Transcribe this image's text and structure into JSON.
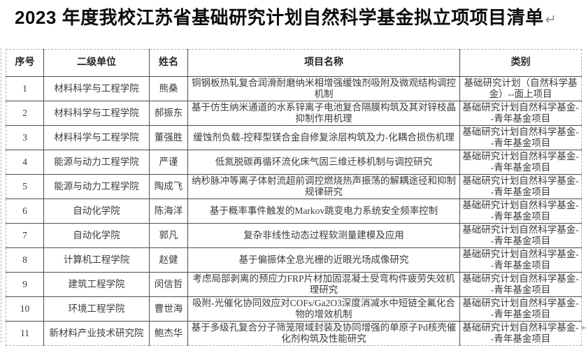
{
  "title": {
    "text": "2023 年度我校江苏省基础研究计划自然科学基金拟立项项目清单",
    "pilcrow": "↵"
  },
  "table": {
    "headers": [
      "序号",
      "二级单位",
      "姓名",
      "项目名称",
      "类别"
    ],
    "rows": [
      {
        "no": "1",
        "unit": "材料科学与工程学院",
        "name": "熊桑",
        "project": "铜钢板热轧复合润滑耐磨纳米相增强缓蚀剂吸附及微观结构调控机制",
        "category": "基础研究计划（自然科学基金）--面上项目"
      },
      {
        "no": "2",
        "unit": "材料科学与工程学院",
        "name": "郝振东",
        "project": "基于仿生纳米通道的水系锌离子电池复合隔膜构筑及其对锌枝晶抑制作用机理",
        "category": "基础研究计划自然科学基金--青年基金项目"
      },
      {
        "no": "3",
        "unit": "材料科学与工程学院",
        "name": "董强胜",
        "project": "缓蚀剂负载-控释型镁合金自修复涂层构筑及力-化耦合损伤机理",
        "category": "基础研究计划自然科学基金--青年基金项目"
      },
      {
        "no": "4",
        "unit": "能源与动力工程学院",
        "name": "严谨",
        "project": "低氮脱碳再循环流化床气固三维迁移机制与调控研究",
        "category": "基础研究计划自然科学基金--青年基金项目"
      },
      {
        "no": "5",
        "unit": "能源与动力工程学院",
        "name": "陶成飞",
        "project": "纳秒脉冲等离子体射流超前调控燃烧热声振荡的解耦途径和抑制规律研究",
        "category": "基础研究计划自然科学基金--青年基金项目"
      },
      {
        "no": "6",
        "unit": "自动化学院",
        "name": "陈海洋",
        "project": "基于概率事件触发的Markov跳变电力系统安全频率控制",
        "category": "基础研究计划自然科学基金--青年基金项目"
      },
      {
        "no": "7",
        "unit": "自动化学院",
        "name": "郭凡",
        "project": "复杂非线性动态过程软测量建模及应用",
        "category": "基础研究计划自然科学基金--青年基金项目"
      },
      {
        "no": "8",
        "unit": "计算机工程学院",
        "name": "赵健",
        "project": "基于偏振体全息光栅的近眼光场成像研究",
        "category": "基础研究计划自然科学基金--青年基金项目"
      },
      {
        "no": "9",
        "unit": "建筑工程学院",
        "name": "闵信哲",
        "project": "考虑局部剥离的预应力FRP片材加固混凝土受弯构件疲劳失效机理研究",
        "category": "基础研究计划自然科学基金--青年基金项目"
      },
      {
        "no": "10",
        "unit": "环境工程学院",
        "name": "曹世海",
        "project": "吸附-光催化协同效应对COFs/Ga2O3深度消减水中短链全氟化合物的增效机制",
        "category": "基础研究计划自然科学基金--青年基金项目"
      },
      {
        "no": "11",
        "unit": "新材料产业技术研究院",
        "name": "鲍杰华",
        "project": "基于多级孔复合分子筛笼限域封装及协同增强的单原子Pd核壳催化剂构筑及性能研究",
        "category": "基础研究计划自然科学基金--青年基金项目"
      }
    ]
  },
  "end_mark": "↵"
}
